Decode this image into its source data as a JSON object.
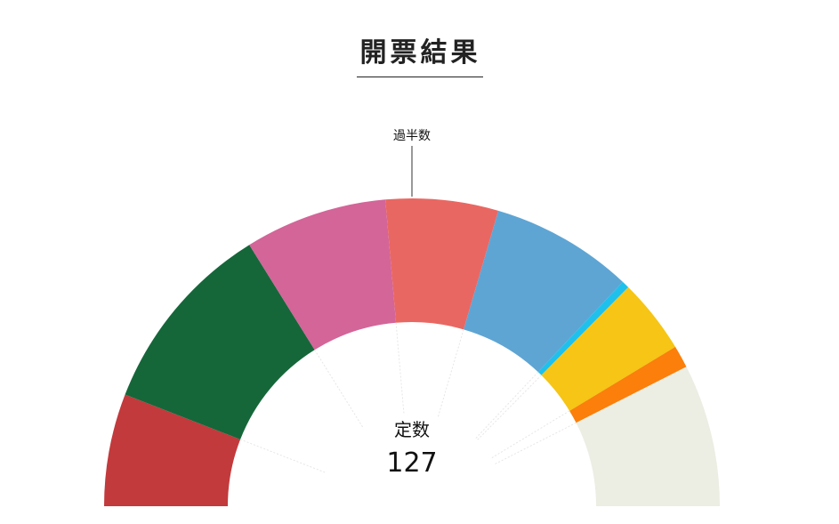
{
  "chart_data": {
    "type": "pie",
    "title": "開票結果",
    "layout": "half-donut",
    "majority_label": "過半数",
    "total_label": "定数",
    "total": 127,
    "segments": [
      {
        "value": 15,
        "color": "#c23a3c"
      },
      {
        "value": 26,
        "color": "#15673a"
      },
      {
        "value": 19,
        "color": "#d36598"
      },
      {
        "value": 15,
        "color": "#e96762"
      },
      {
        "value": 19,
        "color": "#5ea5d4"
      },
      {
        "value": 1,
        "color": "#1ec1ec"
      },
      {
        "value": 10,
        "color": "#f6c515"
      },
      {
        "value": 3,
        "color": "#fb7f0a"
      },
      {
        "value": 19,
        "color": "#ecede3"
      }
    ]
  }
}
